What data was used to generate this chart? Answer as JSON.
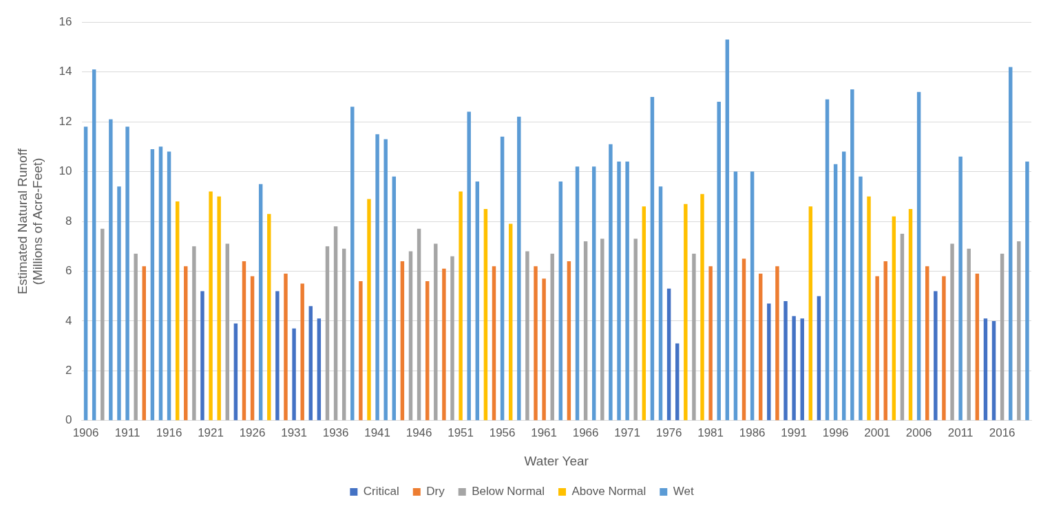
{
  "chart_data": {
    "type": "bar",
    "xlabel": "Water Year",
    "ylabel": "Estimated Natural Runoff\n(Millions of Acre-Feet)",
    "categories": [
      "1906",
      null,
      null,
      null,
      null,
      "1911",
      null,
      null,
      null,
      null,
      "1916",
      null,
      null,
      null,
      null,
      "1921",
      null,
      null,
      null,
      null,
      "1926",
      null,
      null,
      null,
      null,
      "1931",
      null,
      null,
      null,
      null,
      "1936",
      null,
      null,
      null,
      null,
      "1941",
      null,
      null,
      null,
      null,
      "1946",
      null,
      null,
      null,
      null,
      "1951",
      null,
      null,
      null,
      null,
      "1956",
      null,
      null,
      null,
      null,
      "1961",
      null,
      null,
      null,
      null,
      "1966",
      null,
      null,
      null,
      null,
      "1971",
      null,
      null,
      null,
      null,
      "1976",
      null,
      null,
      null,
      null,
      "1981",
      null,
      null,
      null,
      null,
      "1986",
      null,
      null,
      null,
      null,
      "1991",
      null,
      null,
      null,
      null,
      "1996",
      null,
      null,
      null,
      null,
      "2001",
      null,
      null,
      null,
      null,
      "2006",
      null,
      null,
      null,
      null,
      "2011",
      null,
      null,
      null,
      null,
      "2016",
      null,
      null,
      null
    ],
    "series": [
      {
        "name": "Critical",
        "color": "#4472c4",
        "values": [
          null,
          null,
          null,
          null,
          null,
          null,
          null,
          null,
          null,
          null,
          null,
          null,
          null,
          null,
          5.2,
          null,
          null,
          null,
          3.9,
          null,
          null,
          null,
          null,
          5.2,
          null,
          3.7,
          null,
          4.6,
          4.1,
          null,
          null,
          null,
          null,
          null,
          null,
          null,
          null,
          null,
          null,
          null,
          null,
          null,
          null,
          null,
          null,
          null,
          null,
          null,
          null,
          null,
          null,
          null,
          null,
          null,
          null,
          null,
          null,
          null,
          null,
          null,
          null,
          null,
          null,
          null,
          null,
          null,
          null,
          null,
          null,
          null,
          5.3,
          3.1,
          null,
          null,
          null,
          null,
          null,
          null,
          null,
          null,
          null,
          null,
          4.7,
          null,
          4.8,
          4.2,
          4.1,
          null,
          5.0,
          null,
          null,
          null,
          null,
          null,
          null,
          null,
          null,
          null,
          null,
          null,
          null,
          null,
          5.2,
          null,
          null,
          null,
          null,
          null,
          4.1,
          4.0,
          null,
          null,
          null,
          null
        ]
      },
      {
        "name": "Dry",
        "color": "#ed7d31",
        "values": [
          null,
          null,
          null,
          null,
          null,
          null,
          null,
          6.2,
          null,
          null,
          null,
          null,
          6.2,
          null,
          null,
          null,
          null,
          null,
          null,
          6.4,
          5.8,
          null,
          null,
          null,
          5.9,
          null,
          5.5,
          null,
          null,
          null,
          null,
          null,
          null,
          5.6,
          null,
          null,
          null,
          null,
          6.4,
          null,
          null,
          5.6,
          null,
          6.1,
          null,
          null,
          null,
          null,
          null,
          6.2,
          null,
          null,
          null,
          null,
          6.2,
          5.7,
          null,
          null,
          6.4,
          null,
          null,
          null,
          null,
          null,
          null,
          null,
          null,
          null,
          null,
          null,
          null,
          null,
          null,
          null,
          null,
          6.2,
          null,
          null,
          null,
          6.5,
          null,
          5.9,
          null,
          6.2,
          null,
          null,
          null,
          null,
          null,
          null,
          null,
          null,
          null,
          null,
          null,
          5.8,
          6.4,
          null,
          null,
          null,
          null,
          6.2,
          null,
          5.8,
          null,
          null,
          null,
          5.9,
          null,
          null,
          null,
          null,
          null,
          null
        ]
      },
      {
        "name": "Below Normal",
        "color": "#a5a5a5",
        "values": [
          null,
          null,
          7.7,
          null,
          null,
          null,
          6.7,
          null,
          null,
          null,
          null,
          null,
          null,
          7.0,
          null,
          null,
          null,
          7.1,
          null,
          null,
          null,
          null,
          null,
          null,
          null,
          null,
          null,
          null,
          null,
          7.0,
          7.8,
          6.9,
          null,
          null,
          null,
          null,
          null,
          null,
          null,
          6.8,
          7.7,
          null,
          7.1,
          null,
          6.6,
          null,
          null,
          null,
          null,
          null,
          null,
          null,
          null,
          6.8,
          null,
          null,
          6.7,
          null,
          null,
          null,
          7.2,
          null,
          7.3,
          null,
          null,
          null,
          7.3,
          null,
          null,
          null,
          null,
          null,
          null,
          6.7,
          null,
          null,
          null,
          null,
          null,
          null,
          null,
          null,
          null,
          null,
          null,
          null,
          null,
          null,
          null,
          null,
          null,
          null,
          null,
          null,
          null,
          null,
          null,
          null,
          7.5,
          null,
          null,
          null,
          null,
          null,
          7.1,
          null,
          6.9,
          null,
          null,
          null,
          6.7,
          null,
          7.2,
          null
        ]
      },
      {
        "name": "Above Normal",
        "color": "#ffc000",
        "values": [
          null,
          null,
          null,
          null,
          null,
          null,
          null,
          null,
          null,
          null,
          null,
          8.8,
          null,
          null,
          null,
          9.2,
          9.0,
          null,
          null,
          null,
          null,
          null,
          8.3,
          null,
          null,
          null,
          null,
          null,
          null,
          null,
          null,
          null,
          null,
          null,
          8.9,
          null,
          null,
          null,
          null,
          null,
          null,
          null,
          null,
          null,
          null,
          9.2,
          null,
          null,
          8.5,
          null,
          null,
          7.9,
          null,
          null,
          null,
          null,
          null,
          null,
          null,
          null,
          null,
          null,
          null,
          null,
          null,
          null,
          null,
          8.6,
          null,
          null,
          null,
          null,
          8.7,
          null,
          9.1,
          null,
          null,
          null,
          null,
          null,
          null,
          null,
          null,
          null,
          null,
          null,
          null,
          8.6,
          null,
          null,
          null,
          null,
          null,
          null,
          9.0,
          null,
          null,
          8.2,
          null,
          8.5,
          null,
          null,
          null,
          null,
          null,
          null,
          null,
          null,
          null,
          null,
          null,
          null,
          null,
          null
        ]
      },
      {
        "name": "Wet",
        "color": "#5b9bd5",
        "values": [
          11.8,
          14.1,
          null,
          12.1,
          9.4,
          11.8,
          null,
          null,
          10.9,
          11.0,
          10.8,
          null,
          null,
          null,
          null,
          null,
          null,
          null,
          null,
          null,
          null,
          9.5,
          null,
          null,
          null,
          null,
          null,
          null,
          null,
          null,
          null,
          null,
          12.6,
          null,
          null,
          11.5,
          11.3,
          9.8,
          null,
          null,
          null,
          null,
          null,
          null,
          null,
          null,
          12.4,
          9.6,
          null,
          null,
          11.4,
          null,
          12.2,
          null,
          null,
          null,
          null,
          9.6,
          null,
          10.2,
          null,
          10.2,
          null,
          11.1,
          10.4,
          10.4,
          null,
          null,
          13.0,
          9.4,
          null,
          null,
          null,
          null,
          null,
          null,
          12.8,
          15.3,
          10.0,
          null,
          10.0,
          null,
          null,
          null,
          null,
          null,
          null,
          null,
          null,
          12.9,
          10.3,
          10.8,
          13.3,
          9.8,
          null,
          null,
          null,
          null,
          null,
          null,
          13.2,
          null,
          null,
          null,
          null,
          10.6,
          null,
          null,
          null,
          null,
          null,
          14.2,
          null,
          10.4
        ]
      }
    ],
    "ylim": [
      0,
      16
    ],
    "yticks": [
      0,
      2,
      4,
      6,
      8,
      10,
      12,
      14,
      16
    ],
    "grid": "y",
    "legend": "bottom"
  }
}
